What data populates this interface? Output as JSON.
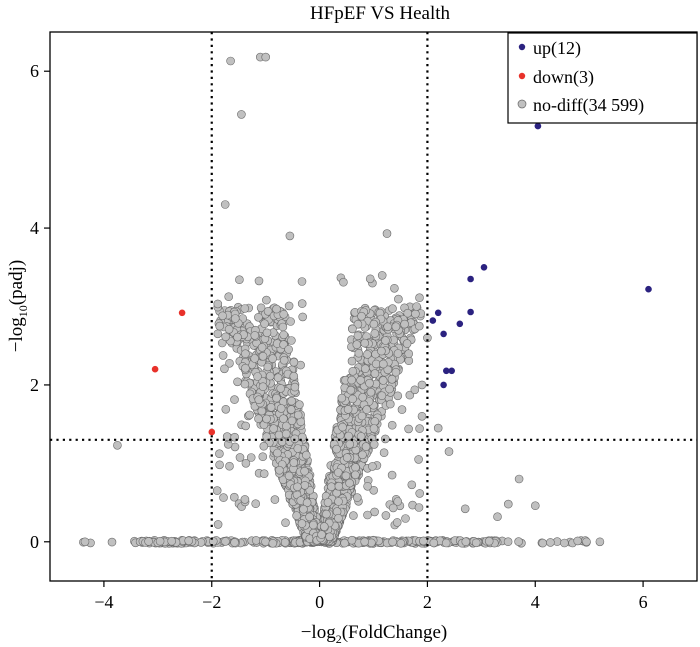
{
  "chart_data": {
    "type": "scatter",
    "title": "HFpEF VS Health",
    "xlabel": {
      "prefix": "−log",
      "sub": "2",
      "suffix": "(FoldChange)"
    },
    "ylabel": {
      "prefix": "−log",
      "sub": "10",
      "suffix": "(padj)"
    },
    "xlim": [
      -5,
      7
    ],
    "ylim": [
      -0.5,
      6.5
    ],
    "xticks": [
      -4,
      -2,
      0,
      2,
      4,
      6
    ],
    "yticks": [
      0,
      2,
      4,
      6
    ],
    "xtick_labels": [
      "−4",
      "−2",
      "0",
      "2",
      "4",
      "6"
    ],
    "ytick_labels": [
      "0",
      "2",
      "4",
      "6"
    ],
    "thresholds": {
      "fc": [
        -2,
        2
      ],
      "padj": 1.3
    },
    "legend_position": "top-right",
    "series": [
      {
        "name": "up(12)",
        "color": "#2b2280",
        "points": [
          [
            2.1,
            2.82
          ],
          [
            2.2,
            2.92
          ],
          [
            2.3,
            2.65
          ],
          [
            2.35,
            2.18
          ],
          [
            2.3,
            2.0
          ],
          [
            2.45,
            2.18
          ],
          [
            2.6,
            2.78
          ],
          [
            2.8,
            3.35
          ],
          [
            2.8,
            2.93
          ],
          [
            3.05,
            3.5
          ],
          [
            4.05,
            5.3
          ],
          [
            6.1,
            3.22
          ]
        ]
      },
      {
        "name": "down(3)",
        "color": "#e8312a",
        "points": [
          [
            -2.55,
            2.92
          ],
          [
            -3.05,
            2.2
          ],
          [
            -2.0,
            1.4
          ]
        ]
      },
      {
        "name": "no-diff(34 599)",
        "color": "#c0c0c0",
        "points": []
      }
    ]
  }
}
